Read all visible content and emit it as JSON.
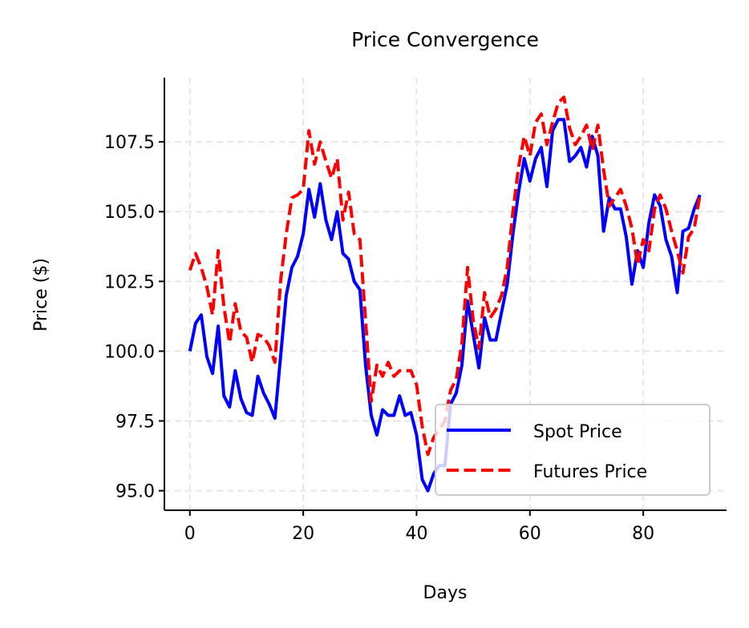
{
  "chart_data": {
    "type": "line",
    "title": "Price Convergence",
    "xlabel": "Days",
    "ylabel": "Price ($)",
    "xlim": [
      -4.5,
      94.7
    ],
    "ylim": [
      94.3,
      109.8
    ],
    "xticks": [
      0,
      20,
      40,
      60,
      80
    ],
    "xtick_labels": [
      "0",
      "20",
      "40",
      "60",
      "80"
    ],
    "yticks": [
      95.0,
      97.5,
      100.0,
      102.5,
      105.0,
      107.5
    ],
    "ytick_labels": [
      "95.0",
      "97.5",
      "100.0",
      "102.5",
      "105.0",
      "107.5"
    ],
    "grid": true,
    "legend_position": "lower-right",
    "x_start": 0,
    "series": [
      {
        "name": "Spot Price",
        "color": "#0000ff",
        "style": "solid",
        "values": [
          100.0,
          101.0,
          101.3,
          99.8,
          99.2,
          100.9,
          98.4,
          98.0,
          99.3,
          98.3,
          97.8,
          97.7,
          99.1,
          98.5,
          98.1,
          97.6,
          99.8,
          102.0,
          103.0,
          103.4,
          104.2,
          105.8,
          104.8,
          106.0,
          104.7,
          104.0,
          105.0,
          103.5,
          103.3,
          102.5,
          102.2,
          99.5,
          97.7,
          97.0,
          97.9,
          97.7,
          97.7,
          98.4,
          97.7,
          97.8,
          97.0,
          95.4,
          95.0,
          95.6,
          95.9,
          95.9,
          98.1,
          98.5,
          99.5,
          101.8,
          100.6,
          99.4,
          101.2,
          100.4,
          100.4,
          101.4,
          102.4,
          104.2,
          105.7,
          106.9,
          106.1,
          106.9,
          107.3,
          105.9,
          107.9,
          108.3,
          108.3,
          106.8,
          107.0,
          107.3,
          106.6,
          107.7,
          107.0,
          104.3,
          105.5,
          105.1,
          105.1,
          104.1,
          102.4,
          103.6,
          103.0,
          104.6,
          105.6,
          105.2,
          104.0,
          103.4,
          102.1,
          104.3,
          104.4,
          105.1,
          105.6
        ]
      },
      {
        "name": "Futures Price",
        "color": "#ff0000",
        "style": "dashed",
        "values": [
          102.9,
          103.5,
          103.0,
          102.3,
          101.3,
          103.6,
          101.6,
          100.3,
          101.7,
          100.7,
          100.5,
          99.6,
          100.6,
          100.5,
          100.2,
          99.6,
          102.5,
          104.2,
          105.5,
          105.6,
          105.8,
          107.9,
          106.7,
          107.5,
          106.8,
          106.2,
          106.9,
          104.7,
          105.7,
          104.2,
          104.0,
          101.1,
          98.2,
          99.5,
          99.1,
          99.6,
          99.1,
          99.3,
          99.3,
          99.3,
          98.8,
          97.3,
          96.3,
          96.9,
          97.2,
          97.5,
          98.6,
          99.0,
          100.3,
          103.0,
          101.1,
          100.1,
          102.1,
          101.2,
          101.5,
          102.0,
          103.0,
          105.0,
          106.6,
          107.7,
          107.0,
          108.2,
          108.5,
          107.4,
          108.2,
          108.9,
          109.1,
          108.0,
          107.4,
          107.7,
          108.1,
          107.2,
          108.1,
          106.5,
          105.2,
          105.5,
          105.8,
          105.2,
          104.4,
          103.1,
          104.0,
          103.6,
          105.1,
          105.6,
          105.1,
          104.3,
          103.6,
          102.8,
          104.1,
          104.4,
          105.6
        ]
      }
    ]
  }
}
